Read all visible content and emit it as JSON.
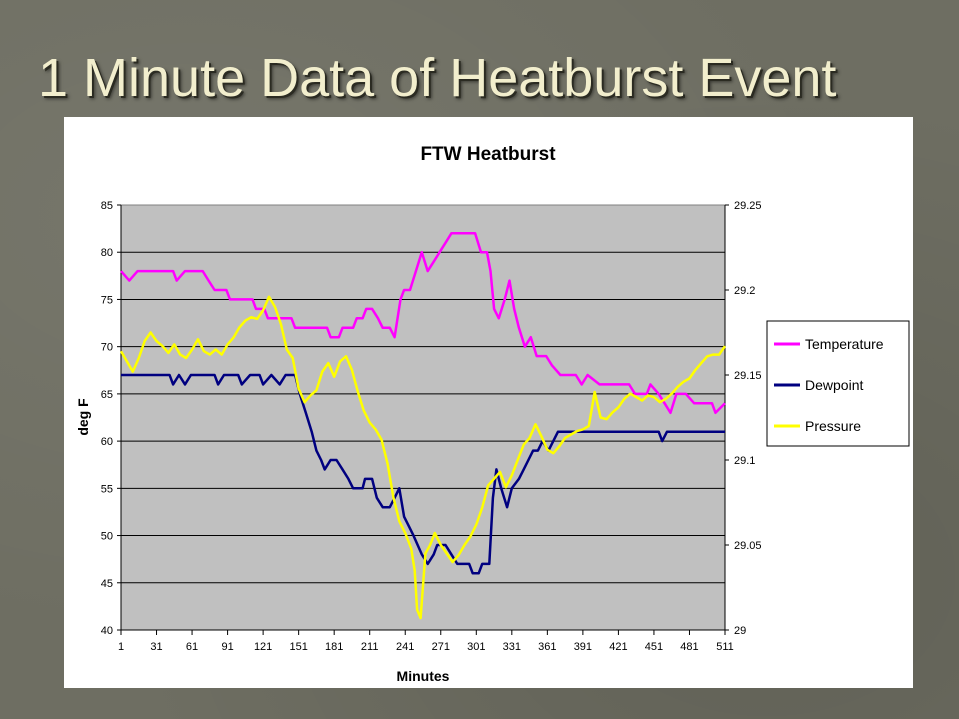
{
  "slide": {
    "title": "1 Minute Data of Heatburst Event"
  },
  "chart_data": {
    "type": "line",
    "title": "FTW Heatburst",
    "xlabel": "Minutes",
    "ylabel": "deg F",
    "y2label": "",
    "xlim": [
      1,
      511
    ],
    "ylim": [
      40,
      85
    ],
    "y2lim": [
      29,
      29.25
    ],
    "x_ticks": [
      "1",
      "31",
      "61",
      "91",
      "121",
      "151",
      "181",
      "211",
      "241",
      "271",
      "301",
      "331",
      "361",
      "391",
      "421",
      "451",
      "481",
      "511"
    ],
    "y_ticks": [
      "40",
      "45",
      "50",
      "55",
      "60",
      "65",
      "70",
      "75",
      "80",
      "85"
    ],
    "y2_ticks": [
      "29",
      "29.05",
      "29.1",
      "29.15",
      "29.2",
      "29.25"
    ],
    "grid": "horizontal",
    "plot_background": "#c0c0c0",
    "legend_position": "right",
    "series": [
      {
        "name": "Temperature",
        "color": "#ff00ff",
        "axis": "left",
        "points": [
          [
            1,
            78
          ],
          [
            8,
            77
          ],
          [
            15,
            78
          ],
          [
            45,
            78
          ],
          [
            48,
            77
          ],
          [
            55,
            78
          ],
          [
            70,
            78
          ],
          [
            75,
            77
          ],
          [
            80,
            76
          ],
          [
            90,
            76
          ],
          [
            93,
            75
          ],
          [
            112,
            75
          ],
          [
            115,
            74
          ],
          [
            122,
            74
          ],
          [
            125,
            73
          ],
          [
            145,
            73
          ],
          [
            148,
            72
          ],
          [
            175,
            72
          ],
          [
            178,
            71
          ],
          [
            185,
            71
          ],
          [
            188,
            72
          ],
          [
            197,
            72
          ],
          [
            200,
            73
          ],
          [
            205,
            73
          ],
          [
            208,
            74
          ],
          [
            213,
            74
          ],
          [
            218,
            73
          ],
          [
            222,
            72
          ],
          [
            228,
            72
          ],
          [
            232,
            71
          ],
          [
            237,
            75
          ],
          [
            240,
            76
          ],
          [
            245,
            76
          ],
          [
            250,
            78
          ],
          [
            255,
            80
          ],
          [
            260,
            78
          ],
          [
            265,
            79
          ],
          [
            270,
            80
          ],
          [
            275,
            81
          ],
          [
            280,
            82
          ],
          [
            300,
            82
          ],
          [
            305,
            80
          ],
          [
            310,
            80
          ],
          [
            313,
            78
          ],
          [
            316,
            74
          ],
          [
            320,
            73
          ],
          [
            325,
            75
          ],
          [
            329,
            77
          ],
          [
            333,
            74
          ],
          [
            337,
            72
          ],
          [
            342,
            70
          ],
          [
            347,
            71
          ],
          [
            352,
            69
          ],
          [
            360,
            69
          ],
          [
            365,
            68
          ],
          [
            372,
            67
          ],
          [
            385,
            67
          ],
          [
            390,
            66
          ],
          [
            395,
            67
          ],
          [
            405,
            66
          ],
          [
            430,
            66
          ],
          [
            435,
            65
          ],
          [
            445,
            65
          ],
          [
            448,
            66
          ],
          [
            455,
            65
          ],
          [
            460,
            64
          ],
          [
            465,
            63
          ],
          [
            470,
            65
          ],
          [
            478,
            65
          ],
          [
            485,
            64
          ],
          [
            500,
            64
          ],
          [
            503,
            63
          ],
          [
            511,
            64
          ]
        ]
      },
      {
        "name": "Dewpoint",
        "color": "#000080",
        "axis": "left",
        "points": [
          [
            1,
            67
          ],
          [
            42,
            67
          ],
          [
            45,
            66
          ],
          [
            50,
            67
          ],
          [
            55,
            66
          ],
          [
            60,
            67
          ],
          [
            80,
            67
          ],
          [
            83,
            66
          ],
          [
            88,
            67
          ],
          [
            100,
            67
          ],
          [
            103,
            66
          ],
          [
            110,
            67
          ],
          [
            118,
            67
          ],
          [
            121,
            66
          ],
          [
            128,
            67
          ],
          [
            135,
            66
          ],
          [
            140,
            67
          ],
          [
            148,
            67
          ],
          [
            152,
            65
          ],
          [
            157,
            63
          ],
          [
            162,
            61
          ],
          [
            166,
            59
          ],
          [
            170,
            58
          ],
          [
            173,
            57
          ],
          [
            178,
            58
          ],
          [
            183,
            58
          ],
          [
            188,
            57
          ],
          [
            193,
            56
          ],
          [
            197,
            55
          ],
          [
            205,
            55
          ],
          [
            207,
            56
          ],
          [
            213,
            56
          ],
          [
            217,
            54
          ],
          [
            222,
            53
          ],
          [
            228,
            53
          ],
          [
            232,
            54
          ],
          [
            236,
            55
          ],
          [
            240,
            52
          ],
          [
            244,
            51
          ],
          [
            248,
            50
          ],
          [
            255,
            48
          ],
          [
            260,
            47
          ],
          [
            265,
            48
          ],
          [
            268,
            49
          ],
          [
            275,
            49
          ],
          [
            280,
            48
          ],
          [
            285,
            47
          ],
          [
            295,
            47
          ],
          [
            298,
            46
          ],
          [
            303,
            46
          ],
          [
            306,
            47
          ],
          [
            312,
            47
          ],
          [
            315,
            54
          ],
          [
            318,
            57
          ],
          [
            322,
            55
          ],
          [
            327,
            53
          ],
          [
            331,
            55
          ],
          [
            337,
            56
          ],
          [
            341,
            57
          ],
          [
            345,
            58
          ],
          [
            349,
            59
          ],
          [
            353,
            59
          ],
          [
            357,
            60
          ],
          [
            362,
            59
          ],
          [
            366,
            60
          ],
          [
            370,
            61
          ],
          [
            455,
            61
          ],
          [
            458,
            60
          ],
          [
            462,
            61
          ],
          [
            511,
            61
          ]
        ]
      },
      {
        "name": "Pressure",
        "color": "#ffff00",
        "axis": "right",
        "points": [
          [
            1,
            29.164
          ],
          [
            6,
            29.158
          ],
          [
            11,
            29.152
          ],
          [
            16,
            29.16
          ],
          [
            21,
            29.17
          ],
          [
            26,
            29.175
          ],
          [
            31,
            29.17
          ],
          [
            36,
            29.167
          ],
          [
            41,
            29.163
          ],
          [
            46,
            29.168
          ],
          [
            51,
            29.162
          ],
          [
            56,
            29.16
          ],
          [
            61,
            29.165
          ],
          [
            66,
            29.171
          ],
          [
            71,
            29.164
          ],
          [
            76,
            29.162
          ],
          [
            81,
            29.165
          ],
          [
            86,
            29.162
          ],
          [
            91,
            29.168
          ],
          [
            96,
            29.172
          ],
          [
            101,
            29.178
          ],
          [
            106,
            29.182
          ],
          [
            111,
            29.184
          ],
          [
            116,
            29.183
          ],
          [
            121,
            29.188
          ],
          [
            126,
            29.196
          ],
          [
            131,
            29.19
          ],
          [
            136,
            29.18
          ],
          [
            141,
            29.165
          ],
          [
            146,
            29.16
          ],
          [
            151,
            29.142
          ],
          [
            156,
            29.134
          ],
          [
            161,
            29.138
          ],
          [
            166,
            29.141
          ],
          [
            171,
            29.152
          ],
          [
            176,
            29.157
          ],
          [
            181,
            29.149
          ],
          [
            186,
            29.158
          ],
          [
            191,
            29.161
          ],
          [
            196,
            29.153
          ],
          [
            201,
            29.14
          ],
          [
            206,
            29.129
          ],
          [
            211,
            29.122
          ],
          [
            216,
            29.118
          ],
          [
            221,
            29.112
          ],
          [
            226,
            29.098
          ],
          [
            231,
            29.078
          ],
          [
            236,
            29.064
          ],
          [
            241,
            29.057
          ],
          [
            246,
            29.048
          ],
          [
            249,
            29.035
          ],
          [
            251,
            29.012
          ],
          [
            254,
            29.007
          ],
          [
            258,
            29.045
          ],
          [
            262,
            29.05
          ],
          [
            266,
            29.057
          ],
          [
            271,
            29.05
          ],
          [
            276,
            29.045
          ],
          [
            281,
            29.04
          ],
          [
            286,
            29.044
          ],
          [
            291,
            29.05
          ],
          [
            296,
            29.055
          ],
          [
            301,
            29.062
          ],
          [
            306,
            29.072
          ],
          [
            311,
            29.085
          ],
          [
            316,
            29.089
          ],
          [
            321,
            29.093
          ],
          [
            326,
            29.084
          ],
          [
            331,
            29.091
          ],
          [
            336,
            29.1
          ],
          [
            341,
            29.109
          ],
          [
            346,
            29.113
          ],
          [
            351,
            29.121
          ],
          [
            356,
            29.114
          ],
          [
            361,
            29.106
          ],
          [
            366,
            29.104
          ],
          [
            371,
            29.108
          ],
          [
            376,
            29.113
          ],
          [
            381,
            29.115
          ],
          [
            386,
            29.117
          ],
          [
            391,
            29.118
          ],
          [
            396,
            29.12
          ],
          [
            401,
            29.14
          ],
          [
            406,
            29.125
          ],
          [
            411,
            29.124
          ],
          [
            416,
            29.128
          ],
          [
            421,
            29.131
          ],
          [
            426,
            29.136
          ],
          [
            431,
            29.139
          ],
          [
            436,
            29.137
          ],
          [
            441,
            29.135
          ],
          [
            446,
            29.138
          ],
          [
            451,
            29.137
          ],
          [
            456,
            29.134
          ],
          [
            461,
            29.136
          ],
          [
            466,
            29.139
          ],
          [
            471,
            29.143
          ],
          [
            476,
            29.146
          ],
          [
            481,
            29.148
          ],
          [
            486,
            29.153
          ],
          [
            491,
            29.157
          ],
          [
            496,
            29.161
          ],
          [
            501,
            29.162
          ],
          [
            506,
            29.162
          ],
          [
            511,
            29.167
          ]
        ]
      }
    ]
  }
}
